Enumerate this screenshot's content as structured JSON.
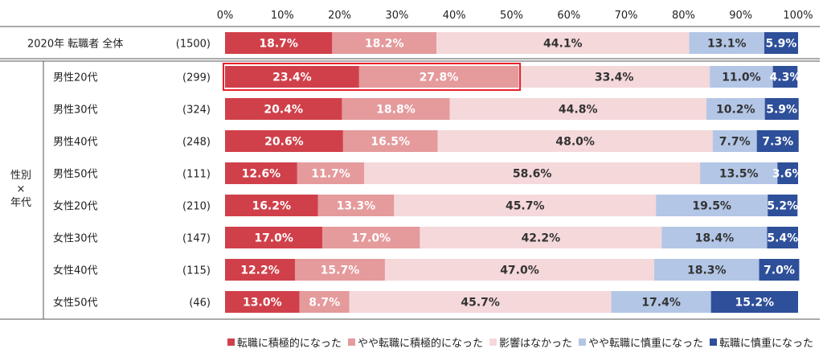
{
  "chart_data": {
    "type": "bar",
    "orientation": "horizontal-stacked-100",
    "x_ticks": [
      "0%",
      "10%",
      "20%",
      "30%",
      "40%",
      "50%",
      "60%",
      "70%",
      "80%",
      "90%",
      "100%"
    ],
    "xlim": [
      0,
      100
    ],
    "group_label": [
      "性別",
      "×",
      "年代"
    ],
    "rows": [
      {
        "label": "2020年 転職者 全体",
        "n": "(1500)",
        "values": [
          18.7,
          18.2,
          44.1,
          13.1,
          5.9
        ],
        "labels": [
          "18.7%",
          "18.2%",
          "44.1%",
          "13.1%",
          "5.9%"
        ]
      },
      {
        "label": "男性20代",
        "n": "(299)",
        "values": [
          23.4,
          27.8,
          33.4,
          11.0,
          4.3
        ],
        "labels": [
          "23.4%",
          "27.8%",
          "33.4%",
          "11.0%",
          "4.3%"
        ]
      },
      {
        "label": "男性30代",
        "n": "(324)",
        "values": [
          20.4,
          18.8,
          44.8,
          10.2,
          5.9
        ],
        "labels": [
          "20.4%",
          "18.8%",
          "44.8%",
          "10.2%",
          "5.9%"
        ]
      },
      {
        "label": "男性40代",
        "n": "(248)",
        "values": [
          20.6,
          16.5,
          48.0,
          7.7,
          7.3
        ],
        "labels": [
          "20.6%",
          "16.5%",
          "48.0%",
          "7.7%",
          "7.3%"
        ]
      },
      {
        "label": "男性50代",
        "n": "(111)",
        "values": [
          12.6,
          11.7,
          58.6,
          13.5,
          3.6
        ],
        "labels": [
          "12.6%",
          "11.7%",
          "58.6%",
          "13.5%",
          "3.6%"
        ]
      },
      {
        "label": "女性20代",
        "n": "(210)",
        "values": [
          16.2,
          13.3,
          45.7,
          19.5,
          5.2
        ],
        "labels": [
          "16.2%",
          "13.3%",
          "45.7%",
          "19.5%",
          "5.2%"
        ]
      },
      {
        "label": "女性30代",
        "n": "(147)",
        "values": [
          17.0,
          17.0,
          42.2,
          18.4,
          5.4
        ],
        "labels": [
          "17.0%",
          "17.0%",
          "42.2%",
          "18.4%",
          "5.4%"
        ]
      },
      {
        "label": "女性40代",
        "n": "(115)",
        "values": [
          12.2,
          15.7,
          47.0,
          18.3,
          7.0
        ],
        "labels": [
          "12.2%",
          "15.7%",
          "47.0%",
          "18.3%",
          "7.0%"
        ]
      },
      {
        "label": "女性50代",
        "n": "(46)",
        "values": [
          13.0,
          8.7,
          45.7,
          17.4,
          15.2
        ],
        "labels": [
          "13.0%",
          "8.7%",
          "45.7%",
          "17.4%",
          "15.2%"
        ]
      }
    ],
    "series": [
      {
        "name": "転職に積極的になった",
        "color": "#d0404a",
        "text_color": "#ffffff"
      },
      {
        "name": "やや転職に積極的になった",
        "color": "#e59a9c",
        "text_color": "#ffffff"
      },
      {
        "name": "影響はなかった",
        "color": "#f5d8da",
        "text_color": "#333333"
      },
      {
        "name": "やや転職に慎重になった",
        "color": "#b3c6e6",
        "text_color": "#333333"
      },
      {
        "name": "転職に慎重になった",
        "color": "#2e4f99",
        "text_color": "#ffffff"
      }
    ],
    "highlight": {
      "row": 1,
      "series": [
        0,
        1
      ],
      "color": "#e8202a"
    }
  }
}
